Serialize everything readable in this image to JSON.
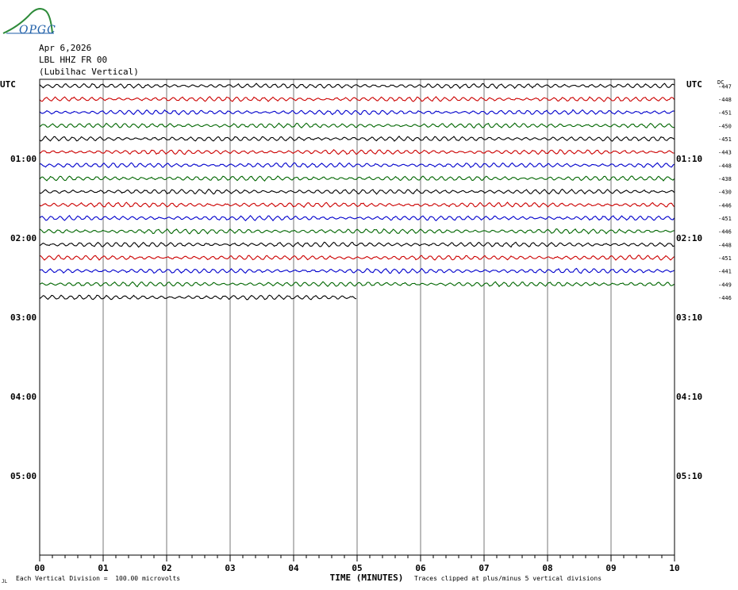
{
  "logo": {
    "text": "OPGC"
  },
  "header": {
    "date": "Apr 6,2026",
    "station": "LBL HHZ FR 00",
    "description": "(Lubilhac Vertical)"
  },
  "axes": {
    "left_title": "UTC",
    "right_title": "UTC",
    "dc_title": "DC",
    "xlabel": "TIME (MINUTES)"
  },
  "footer": {
    "division_note": "Each Vertical Division =  100.00 microvolts",
    "clip_note": "Traces clipped at plus/minus 5 vertical divisions",
    "corner_mark": "JL"
  },
  "chart_data": {
    "type": "line",
    "title": "",
    "xlabel": "TIME (MINUTES)",
    "ylabel": "UTC",
    "x_ticks": [
      "00",
      "01",
      "02",
      "03",
      "04",
      "05",
      "06",
      "07",
      "08",
      "09",
      "10"
    ],
    "xlim": [
      0,
      10
    ],
    "left_time_labels": [
      "01:00",
      "02:00",
      "03:00",
      "04:00",
      "05:00"
    ],
    "right_time_labels": [
      "01:10",
      "02:10",
      "03:10",
      "04:10",
      "05:10"
    ],
    "rows_total": 36,
    "row_minutes": 10,
    "trace_colors": [
      "#000000",
      "#cc0000",
      "#0000cc",
      "#006600"
    ],
    "dc_offsets": [
      -447,
      -448,
      -451,
      -450,
      -451,
      -443,
      -448,
      -438,
      -430,
      -446,
      -451,
      -446,
      -448,
      -451,
      -441,
      -449,
      -446
    ],
    "traces_complete": 16,
    "last_trace_end_minute": 5.0,
    "grid": true
  }
}
